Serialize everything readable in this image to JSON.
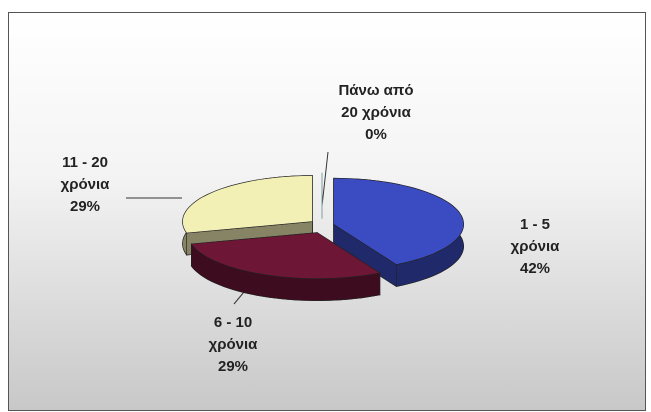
{
  "chart_data": {
    "type": "pie3d",
    "categories": [
      "1 - 5 χρόνια",
      "6 - 10 χρόνια",
      "11 - 20 χρόνια",
      "Πάνω από 20 χρόνια"
    ],
    "values": [
      42,
      29,
      29,
      0
    ],
    "value_labels": [
      "42%",
      "29%",
      "29%",
      "0%"
    ],
    "colors": [
      "#3b4cc2",
      "#6e1636",
      "#f3f0b6",
      "#7fa0a0"
    ]
  }
}
